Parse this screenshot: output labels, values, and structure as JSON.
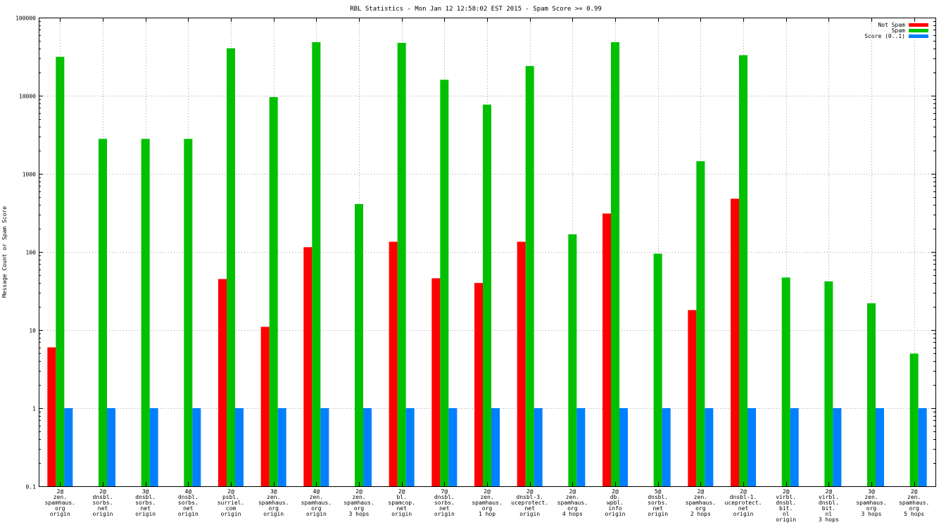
{
  "chart_data": {
    "type": "bar",
    "title": "RBL Statistics - Mon Jan 12 12:58:02 EST 2015 - Spam Score >= 0.99",
    "ylabel": "Message Count or Spam Score",
    "xlabel": "",
    "yscale": "log",
    "ylim": [
      0.1,
      100000
    ],
    "yticks": [
      "0.1",
      "1",
      "10",
      "100",
      "1000",
      "10000",
      "100000"
    ],
    "grid": true,
    "legend_position": "top-right",
    "categories": [
      [
        "2@",
        "zen.",
        "spamhaus.",
        "org",
        "origin"
      ],
      [
        "2@",
        "dnsbl.",
        "sorbs.",
        "net",
        "origin"
      ],
      [
        "3@",
        "dnsbl.",
        "sorbs.",
        "net",
        "origin"
      ],
      [
        "4@",
        "dnsbl.",
        "sorbs.",
        "net",
        "origin"
      ],
      [
        "2@",
        "psbl.",
        "surriel.",
        "com",
        "origin"
      ],
      [
        "3@",
        "zen.",
        "spamhaus.",
        "org",
        "origin"
      ],
      [
        "4@",
        "zen.",
        "spamhaus.",
        "org",
        "origin"
      ],
      [
        "2@",
        "zen.",
        "spamhaus.",
        "org",
        "3 hops"
      ],
      [
        "2@",
        "bl.",
        "spamcop.",
        "net",
        "origin"
      ],
      [
        "7@",
        "dnsbl.",
        "sorbs.",
        "net",
        "origin"
      ],
      [
        "2@",
        "zen.",
        "spamhaus.",
        "org",
        "1 hop"
      ],
      [
        "2@",
        "dnsbl-3.",
        "uceprotect.",
        "net",
        "origin"
      ],
      [
        "2@",
        "zen.",
        "spamhaus.",
        "org",
        "4 hops"
      ],
      [
        "2@",
        "db.",
        "wpbl.",
        "info",
        "origin"
      ],
      [
        "5@",
        "dnsbl.",
        "sorbs.",
        "net",
        "origin"
      ],
      [
        "2@",
        "zen.",
        "spamhaus.",
        "org",
        "2 hops"
      ],
      [
        "2@",
        "dnsbl-1.",
        "uceprotect.",
        "net",
        "origin"
      ],
      [
        "2@",
        "virbl.",
        "dnsbl.",
        "bit.",
        "nl",
        "origin"
      ],
      [
        "2@",
        "virbl.",
        "dnsbl.",
        "bit.",
        "nl",
        "3 hops"
      ],
      [
        "3@",
        "zen.",
        "spamhaus.",
        "org",
        "3 hops"
      ],
      [
        "2@",
        "zen.",
        "spamhaus.",
        "org",
        "5 hops"
      ]
    ],
    "series": [
      {
        "name": "Not Spam",
        "color": "#ff0000",
        "values": [
          6,
          null,
          null,
          null,
          45,
          11,
          115,
          null,
          135,
          46,
          40,
          135,
          null,
          310,
          null,
          18,
          480,
          null,
          null,
          null,
          null
        ]
      },
      {
        "name": "Spam",
        "color": "#00c000",
        "values": [
          31500,
          2800,
          2800,
          2800,
          40500,
          9600,
          48500,
          410,
          47500,
          16000,
          7700,
          24000,
          168,
          48500,
          95,
          1450,
          33000,
          47,
          42,
          22,
          5
        ]
      },
      {
        "name": "Score (0..1)",
        "color": "#0080ff",
        "values": [
          1,
          1,
          1,
          1,
          1,
          1,
          1,
          1,
          1,
          1,
          1,
          1,
          1,
          1,
          1,
          1,
          1,
          1,
          1,
          1,
          1
        ]
      }
    ]
  }
}
